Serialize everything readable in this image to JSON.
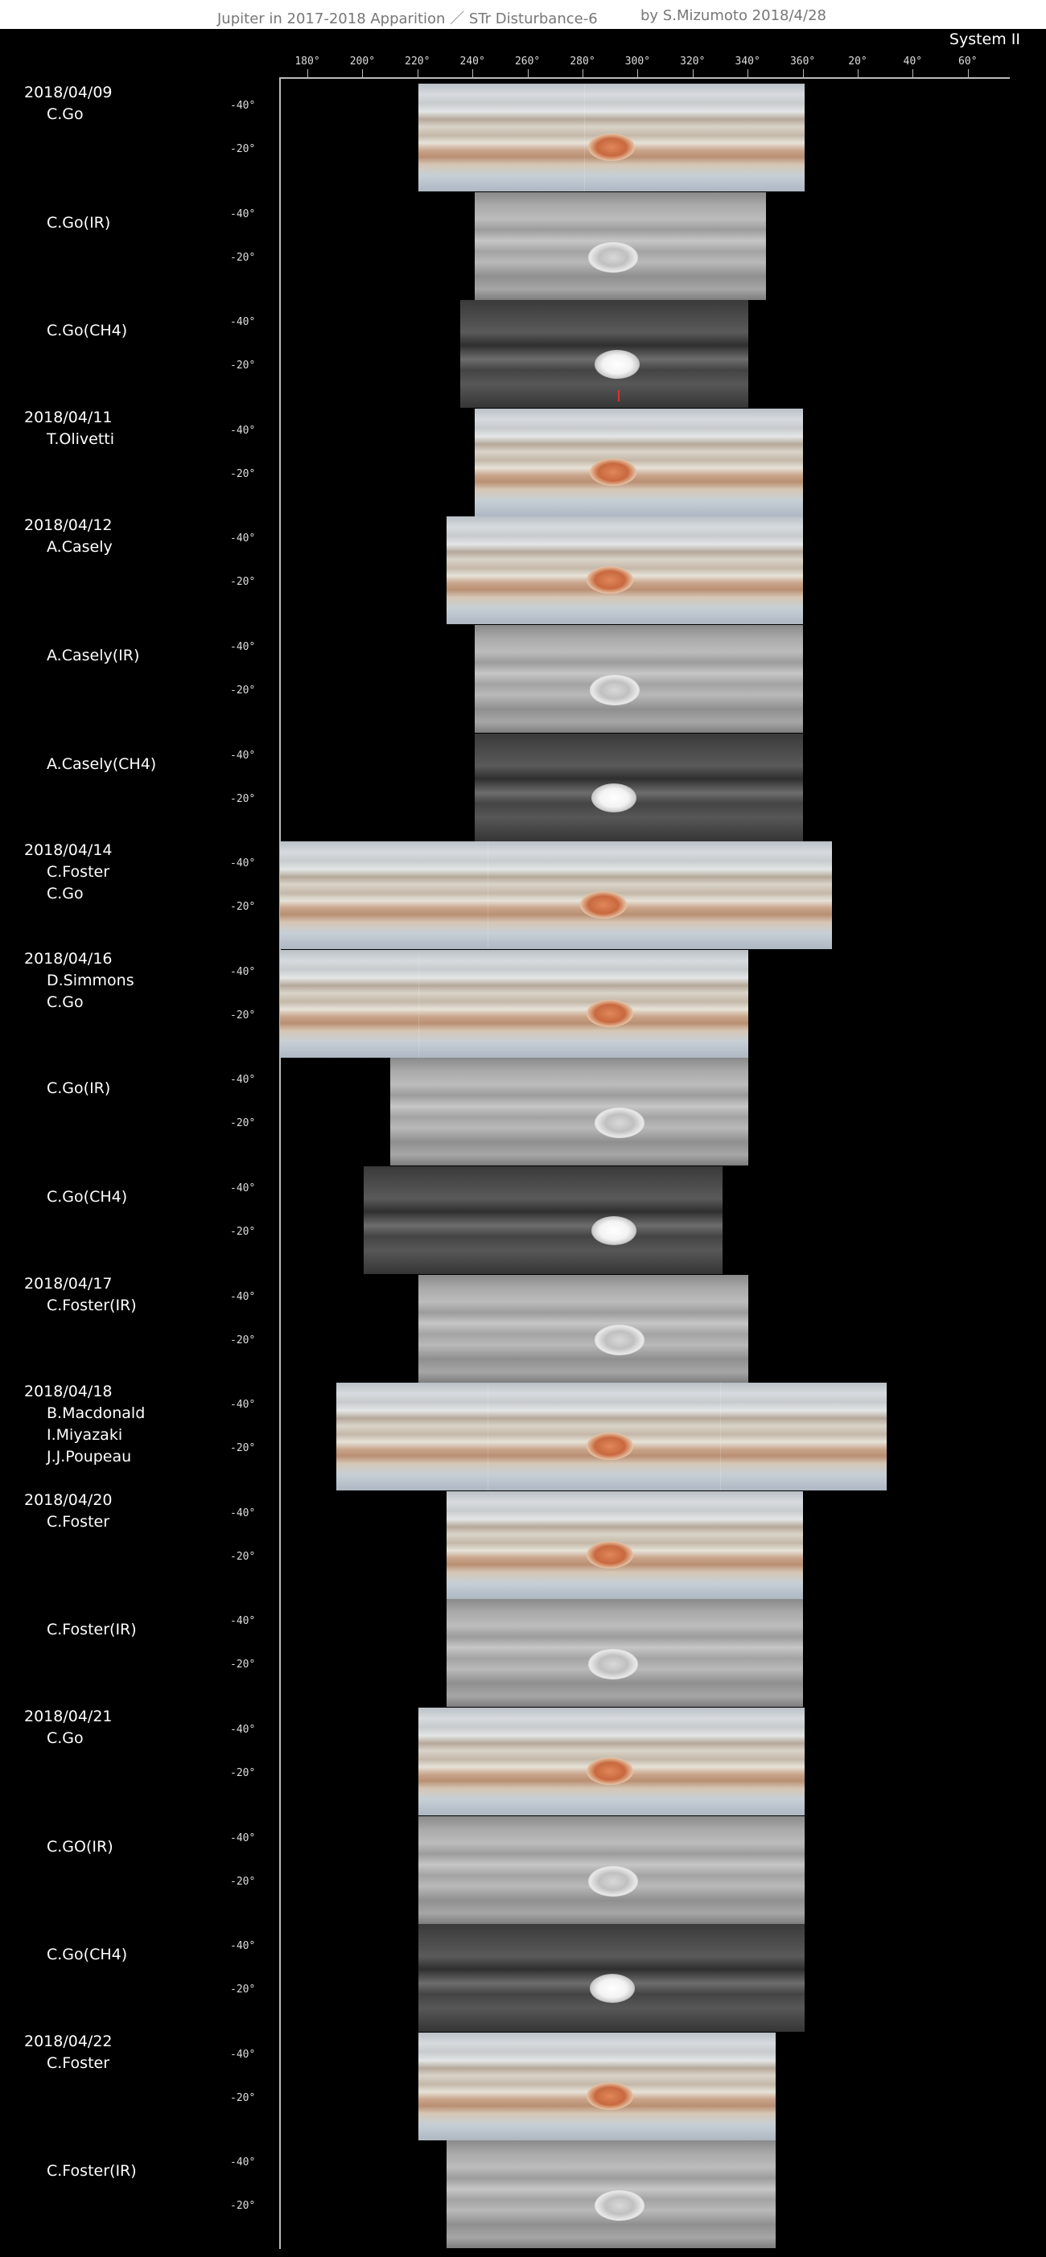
{
  "header": {
    "title": "Jupiter in 2017-2018 Apparition ／ STr Disturbance-6",
    "author": "by S.Mizumoto  2018/4/28",
    "system": "System II"
  },
  "longitude_ticks": [
    "180°",
    "200°",
    "220°",
    "240°",
    "260°",
    "280°",
    "300°",
    "320°",
    "340°",
    "360°",
    "20°",
    "40°",
    "60°"
  ],
  "latitude_labels": {
    "upper": "-40°",
    "lower": "-20°"
  },
  "rows": [
    {
      "date": "2018/04/09",
      "observers": [
        "C.Go"
      ]
    },
    {
      "date": "",
      "observers": [
        "C.Go(IR)"
      ]
    },
    {
      "date": "",
      "observers": [
        "C.Go(CH4)"
      ]
    },
    {
      "date": "2018/04/11",
      "observers": [
        "T.Olivetti"
      ]
    },
    {
      "date": "2018/04/12",
      "observers": [
        "A.Casely"
      ]
    },
    {
      "date": "",
      "observers": [
        "A.Casely(IR)"
      ]
    },
    {
      "date": "",
      "observers": [
        "A.Casely(CH4)"
      ]
    },
    {
      "date": "2018/04/14",
      "observers": [
        "C.Foster",
        "C.Go"
      ]
    },
    {
      "date": "2018/04/16",
      "observers": [
        "D.Simmons",
        "C.Go"
      ]
    },
    {
      "date": "",
      "observers": [
        "C.Go(IR)"
      ]
    },
    {
      "date": "",
      "observers": [
        "C.Go(CH4)"
      ]
    },
    {
      "date": "2018/04/17",
      "observers": [
        "C.Foster(IR)"
      ]
    },
    {
      "date": "2018/04/18",
      "observers": [
        "B.Macdonald",
        "I.Miyazaki",
        "J.J.Poupeau"
      ]
    },
    {
      "date": "2018/04/20",
      "observers": [
        "C.Foster"
      ]
    },
    {
      "date": "",
      "observers": [
        "C.Foster(IR)"
      ]
    },
    {
      "date": "2018/04/21",
      "observers": [
        "C.Go"
      ]
    },
    {
      "date": "",
      "observers": [
        "C.GO(IR)"
      ]
    },
    {
      "date": "",
      "observers": [
        "C.Go(CH4)"
      ]
    },
    {
      "date": "2018/04/22",
      "observers": [
        "C.Foster"
      ]
    },
    {
      "date": "",
      "observers": [
        "C.Foster(IR)"
      ]
    }
  ]
}
